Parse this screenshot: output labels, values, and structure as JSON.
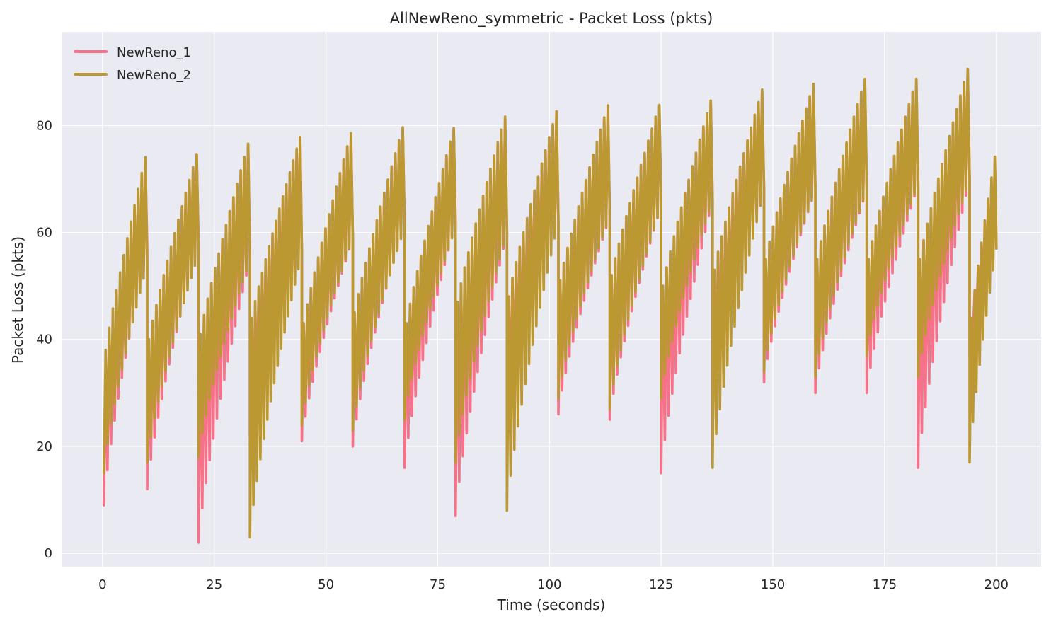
{
  "chart_data": {
    "type": "line",
    "title": "AllNewReno_symmetric - Packet Loss (pkts)",
    "xlabel": "Time (seconds)",
    "ylabel": "Packet Loss (pkts)",
    "xlim": [
      -9,
      210
    ],
    "ylim": [
      -2.5,
      97.5
    ],
    "xticks": [
      0,
      25,
      50,
      75,
      100,
      125,
      150,
      175,
      200
    ],
    "xtick_labels": [
      "0",
      "25",
      "50",
      "75",
      "100",
      "125",
      "150",
      "175",
      "200"
    ],
    "yticks": [
      0,
      20,
      40,
      60,
      80
    ],
    "ytick_labels": [
      "0",
      "20",
      "40",
      "60",
      "80"
    ],
    "grid": true,
    "legend_position": "top-left",
    "background": "#eaeaf2",
    "oscillation_period_s": 0.8,
    "series": [
      {
        "name": "NewReno_1",
        "color": "#f77189",
        "cycles": [
          {
            "t_start": 0.3,
            "t_end": 10.0,
            "low_start": 9,
            "low_end": 57,
            "high_start": 34,
            "high_end": 77
          },
          {
            "t_start": 10.0,
            "t_end": 21.5,
            "low_start": 12,
            "low_end": 58,
            "high_start": 40,
            "high_end": 77
          },
          {
            "t_start": 21.5,
            "t_end": 33.0,
            "low_start": 2,
            "low_end": 55,
            "high_start": 41,
            "high_end": 79
          },
          {
            "t_start": 33.0,
            "t_end": 44.6,
            "low_start": 22,
            "low_end": 57,
            "high_start": 43,
            "high_end": 80
          },
          {
            "t_start": 44.6,
            "t_end": 56.0,
            "low_start": 21,
            "low_end": 59,
            "high_start": 43,
            "high_end": 81
          },
          {
            "t_start": 56.0,
            "t_end": 67.6,
            "low_start": 20,
            "low_end": 62,
            "high_start": 45,
            "high_end": 82
          },
          {
            "t_start": 67.6,
            "t_end": 79.0,
            "low_start": 16,
            "low_end": 62,
            "high_start": 43,
            "high_end": 82
          },
          {
            "t_start": 79.0,
            "t_end": 90.5,
            "low_start": 7,
            "low_end": 60,
            "high_start": 47,
            "high_end": 84
          },
          {
            "t_start": 90.5,
            "t_end": 102.0,
            "low_start": 26,
            "low_end": 62,
            "high_start": 48,
            "high_end": 85
          },
          {
            "t_start": 102.0,
            "t_end": 113.5,
            "low_start": 26,
            "low_end": 63,
            "high_start": 51,
            "high_end": 86
          },
          {
            "t_start": 113.5,
            "t_end": 125.0,
            "low_start": 25,
            "low_end": 65,
            "high_start": 52,
            "high_end": 86
          },
          {
            "t_start": 125.0,
            "t_end": 136.5,
            "low_start": 15,
            "low_end": 66,
            "high_start": 50,
            "high_end": 87
          },
          {
            "t_start": 136.5,
            "t_end": 148.0,
            "low_start": 31,
            "low_end": 68,
            "high_start": 53,
            "high_end": 89
          },
          {
            "t_start": 148.0,
            "t_end": 159.5,
            "low_start": 32,
            "low_end": 68,
            "high_start": 55,
            "high_end": 90
          },
          {
            "t_start": 159.5,
            "t_end": 171.0,
            "low_start": 30,
            "low_end": 68,
            "high_start": 55,
            "high_end": 91
          },
          {
            "t_start": 171.0,
            "t_end": 182.5,
            "low_start": 30,
            "low_end": 69,
            "high_start": 55,
            "high_end": 91
          },
          {
            "t_start": 182.5,
            "t_end": 194.0,
            "low_start": 16,
            "low_end": 70,
            "high_start": 55,
            "high_end": 93
          },
          {
            "t_start": 194.0,
            "t_end": 200.0,
            "low_start": 37,
            "low_end": 57,
            "high_start": 44,
            "high_end": 77
          }
        ]
      },
      {
        "name": "NewReno_2",
        "color": "#bb9832",
        "cycles": [
          {
            "t_start": 0.3,
            "t_end": 10.0,
            "low_start": 15,
            "low_end": 54,
            "high_start": 38,
            "high_end": 77
          },
          {
            "t_start": 10.0,
            "t_end": 21.5,
            "low_start": 17,
            "low_end": 56,
            "high_start": 40,
            "high_end": 77
          },
          {
            "t_start": 21.5,
            "t_end": 33.0,
            "low_start": 18,
            "low_end": 55,
            "high_start": 41,
            "high_end": 79
          },
          {
            "t_start": 33.0,
            "t_end": 44.6,
            "low_start": 3,
            "low_end": 56,
            "high_start": 44,
            "high_end": 80
          },
          {
            "t_start": 44.6,
            "t_end": 56.0,
            "low_start": 24,
            "low_end": 59,
            "high_start": 43,
            "high_end": 81
          },
          {
            "t_start": 56.0,
            "t_end": 67.6,
            "low_start": 23,
            "low_end": 61,
            "high_start": 45,
            "high_end": 82
          },
          {
            "t_start": 67.6,
            "t_end": 79.0,
            "low_start": 25,
            "low_end": 61,
            "high_start": 43,
            "high_end": 82
          },
          {
            "t_start": 79.0,
            "t_end": 90.5,
            "low_start": 17,
            "low_end": 60,
            "high_start": 47,
            "high_end": 84
          },
          {
            "t_start": 90.5,
            "t_end": 102.0,
            "low_start": 8,
            "low_end": 62,
            "high_start": 48,
            "high_end": 85
          },
          {
            "t_start": 102.0,
            "t_end": 113.5,
            "low_start": 29,
            "low_end": 63,
            "high_start": 51,
            "high_end": 86
          },
          {
            "t_start": 113.5,
            "t_end": 125.0,
            "low_start": 27,
            "low_end": 65,
            "high_start": 52,
            "high_end": 86
          },
          {
            "t_start": 125.0,
            "t_end": 136.5,
            "low_start": 29,
            "low_end": 66,
            "high_start": 50,
            "high_end": 87
          },
          {
            "t_start": 136.5,
            "t_end": 148.0,
            "low_start": 16,
            "low_end": 68,
            "high_start": 53,
            "high_end": 89
          },
          {
            "t_start": 148.0,
            "t_end": 159.5,
            "low_start": 34,
            "low_end": 68,
            "high_start": 55,
            "high_end": 90
          },
          {
            "t_start": 159.5,
            "t_end": 171.0,
            "low_start": 33,
            "low_end": 68,
            "high_start": 55,
            "high_end": 91
          },
          {
            "t_start": 171.0,
            "t_end": 182.5,
            "low_start": 37,
            "low_end": 69,
            "high_start": 55,
            "high_end": 91
          },
          {
            "t_start": 182.5,
            "t_end": 194.0,
            "low_start": 33,
            "low_end": 70,
            "high_start": 55,
            "high_end": 93
          },
          {
            "t_start": 194.0,
            "t_end": 200.0,
            "low_start": 17,
            "low_end": 57,
            "high_start": 44,
            "high_end": 78
          }
        ]
      }
    ]
  }
}
